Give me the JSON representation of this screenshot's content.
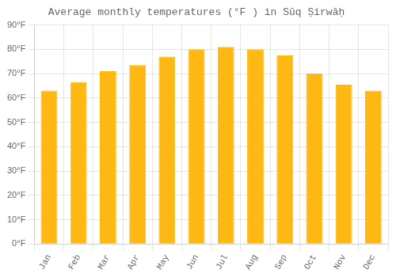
{
  "chart_data": {
    "type": "bar",
    "title": "Average monthly temperatures (°F ) in Sūq Ṣirwāḥ",
    "categories": [
      "Jan",
      "Feb",
      "Mar",
      "Apr",
      "May",
      "Jun",
      "Jul",
      "Aug",
      "Sep",
      "Oct",
      "Nov",
      "Dec"
    ],
    "values": [
      63,
      66.5,
      71,
      73.5,
      77,
      80,
      81,
      80,
      77.5,
      70,
      65.5,
      63
    ],
    "color": "#FDB813",
    "ylim": [
      0,
      90
    ],
    "yticks": [
      {
        "value": 0,
        "label": "0°F"
      },
      {
        "value": 10,
        "label": "10°F"
      },
      {
        "value": 20,
        "label": "20°F"
      },
      {
        "value": 30,
        "label": "30°F"
      },
      {
        "value": 40,
        "label": "40°F"
      },
      {
        "value": 50,
        "label": "50°F"
      },
      {
        "value": 60,
        "label": "60°F"
      },
      {
        "value": 70,
        "label": "70°F"
      },
      {
        "value": 80,
        "label": "80°F"
      },
      {
        "value": 90,
        "label": "90°F"
      }
    ],
    "grid": true
  }
}
